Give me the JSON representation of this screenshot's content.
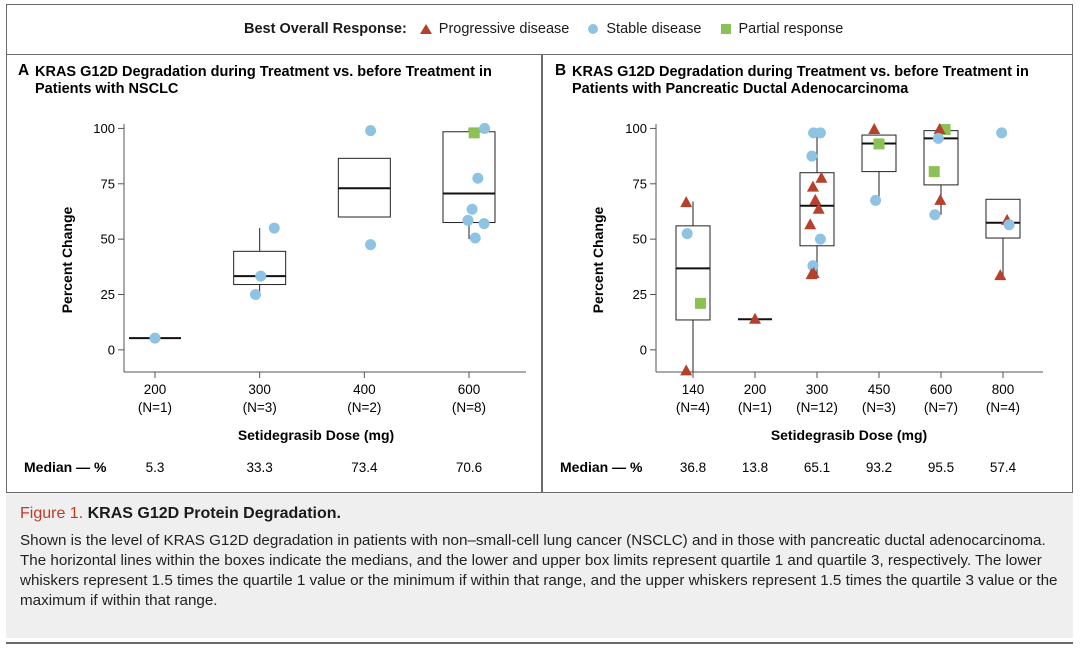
{
  "legend": {
    "title": "Best Overall Response:",
    "items": [
      {
        "label": "Progressive disease",
        "shape": "triangle",
        "color": "#b5402b"
      },
      {
        "label": "Stable disease",
        "shape": "circle",
        "color": "#8fc3e3"
      },
      {
        "label": "Partial response",
        "shape": "square",
        "color": "#8cc155"
      }
    ]
  },
  "colors": {
    "progressive": "#b5402b",
    "stable": "#8fc3e3",
    "partial": "#8cc155",
    "frame": "#6b6b6b",
    "caption_bg": "#efefef",
    "fig_label": "#c0392b"
  },
  "chart_data": [
    {
      "type": "box",
      "panel_letter": "A",
      "title_lines": [
        "KRAS G12D Degradation during Treatment vs. before Treatment in",
        "Patients with NSCLC"
      ],
      "ylabel": "Percent Change",
      "xlabel": "Setidegrasib Dose (mg)",
      "ylim": [
        -10,
        102
      ],
      "yticks": [
        0,
        25,
        50,
        75,
        100
      ],
      "median_label": "Median — %",
      "groups": [
        {
          "dose": "200",
          "n": "(N=1)",
          "median_text": "5.3",
          "box": {
            "q1": 5.3,
            "median": 5.3,
            "q3": 5.3,
            "whisker_low": 5.3,
            "whisker_high": 5.3
          },
          "points": [
            {
              "dx": 0.0,
              "y": 5.3,
              "response": "stable"
            }
          ]
        },
        {
          "dose": "300",
          "n": "(N=3)",
          "median_text": "33.3",
          "box": {
            "q1": 29.5,
            "median": 33.3,
            "q3": 44.5,
            "whisker_low": 24.5,
            "whisker_high": 55
          },
          "points": [
            {
              "dx": -0.08,
              "y": 25,
              "response": "stable"
            },
            {
              "dx": 0.02,
              "y": 33.3,
              "response": "stable"
            },
            {
              "dx": 0.28,
              "y": 55,
              "response": "stable"
            }
          ]
        },
        {
          "dose": "400",
          "n": "(N=2)",
          "median_text": "73.4",
          "box": {
            "q1": 60,
            "median": 73,
            "q3": 86.5,
            "whisker_low": 60,
            "whisker_high": 86.5
          },
          "points": [
            {
              "dx": 0.12,
              "y": 99,
              "response": "stable"
            },
            {
              "dx": 0.12,
              "y": 47.5,
              "response": "stable"
            }
          ]
        },
        {
          "dose": "600",
          "n": "(N=8)",
          "median_text": "70.6",
          "box": {
            "q1": 57.5,
            "median": 70.6,
            "q3": 98.5,
            "whisker_low": 50,
            "whisker_high": 100
          },
          "points": [
            {
              "dx": 0.1,
              "y": 98,
              "response": "partial"
            },
            {
              "dx": 0.3,
              "y": 100,
              "response": "stable"
            },
            {
              "dx": 0.17,
              "y": 77.5,
              "response": "stable"
            },
            {
              "dx": 0.06,
              "y": 63.5,
              "response": "stable"
            },
            {
              "dx": -0.02,
              "y": 58.5,
              "response": "stable"
            },
            {
              "dx": 0.29,
              "y": 57,
              "response": "stable"
            },
            {
              "dx": 0.12,
              "y": 50.5,
              "response": "stable"
            }
          ]
        }
      ]
    },
    {
      "type": "box",
      "panel_letter": "B",
      "title_lines": [
        "KRAS G12D Degradation during Treatment vs. before Treatment in",
        "Patients with Pancreatic Ductal Adenocarcinoma"
      ],
      "ylabel": "Percent Change",
      "xlabel": "Setidegrasib Dose (mg)",
      "ylim": [
        -10,
        102
      ],
      "yticks": [
        0,
        25,
        50,
        75,
        100
      ],
      "median_label": "Median — %",
      "groups": [
        {
          "dose": "140",
          "n": "(N=4)",
          "median_text": "36.8",
          "box": {
            "q1": 13.5,
            "median": 36.8,
            "q3": 56,
            "whisker_low": -10,
            "whisker_high": 67
          },
          "points": [
            {
              "dx": -0.2,
              "y": 66.5,
              "response": "progressive"
            },
            {
              "dx": -0.17,
              "y": 52.5,
              "response": "stable"
            },
            {
              "dx": 0.22,
              "y": 21,
              "response": "partial"
            },
            {
              "dx": -0.2,
              "y": -9.5,
              "response": "progressive"
            }
          ]
        },
        {
          "dose": "200",
          "n": "(N=1)",
          "median_text": "13.8",
          "box": {
            "q1": 13.8,
            "median": 13.8,
            "q3": 13.8,
            "whisker_low": 13.8,
            "whisker_high": 13.8
          },
          "points": [
            {
              "dx": 0.0,
              "y": 13.8,
              "response": "progressive"
            }
          ]
        },
        {
          "dose": "300",
          "n": "(N=12)",
          "median_text": "65.1",
          "box": {
            "q1": 47,
            "median": 65.1,
            "q3": 80,
            "whisker_low": 34,
            "whisker_high": 98
          },
          "points": [
            {
              "dx": -0.1,
              "y": 98,
              "response": "stable"
            },
            {
              "dx": 0.1,
              "y": 98,
              "response": "stable"
            },
            {
              "dx": -0.15,
              "y": 87.5,
              "response": "stable"
            },
            {
              "dx": 0.13,
              "y": 77.5,
              "response": "progressive"
            },
            {
              "dx": -0.12,
              "y": 73.5,
              "response": "progressive"
            },
            {
              "dx": -0.05,
              "y": 67.5,
              "response": "progressive"
            },
            {
              "dx": 0.05,
              "y": 63.5,
              "response": "progressive"
            },
            {
              "dx": -0.2,
              "y": 56.5,
              "response": "progressive"
            },
            {
              "dx": 0.1,
              "y": 50,
              "response": "stable"
            },
            {
              "dx": -0.12,
              "y": 38,
              "response": "stable"
            },
            {
              "dx": -0.16,
              "y": 34,
              "response": "progressive"
            },
            {
              "dx": -0.1,
              "y": 34.5,
              "response": "progressive"
            }
          ]
        },
        {
          "dose": "450",
          "n": "(N=3)",
          "median_text": "93.2",
          "box": {
            "q1": 80.5,
            "median": 93.2,
            "q3": 97,
            "whisker_low": 67.5,
            "whisker_high": 97
          },
          "points": [
            {
              "dx": -0.14,
              "y": 99.5,
              "response": "progressive"
            },
            {
              "dx": 0.0,
              "y": 93,
              "response": "partial"
            },
            {
              "dx": -0.1,
              "y": 67.5,
              "response": "stable"
            }
          ]
        },
        {
          "dose": "600",
          "n": "(N=7)",
          "median_text": "95.5",
          "box": {
            "q1": 74.5,
            "median": 95.5,
            "q3": 99,
            "whisker_low": 61,
            "whisker_high": 100
          },
          "points": [
            {
              "dx": 0.12,
              "y": 99.5,
              "response": "partial"
            },
            {
              "dx": -0.04,
              "y": 99.5,
              "response": "progressive"
            },
            {
              "dx": -0.08,
              "y": 95.5,
              "response": "stable"
            },
            {
              "dx": -0.2,
              "y": 80.5,
              "response": "partial"
            },
            {
              "dx": -0.02,
              "y": 67.5,
              "response": "progressive"
            },
            {
              "dx": -0.18,
              "y": 61,
              "response": "stable"
            }
          ]
        },
        {
          "dose": "800",
          "n": "(N=4)",
          "median_text": "57.4",
          "box": {
            "q1": 50.5,
            "median": 57.4,
            "q3": 68,
            "whisker_low": 33.5,
            "whisker_high": 68
          },
          "points": [
            {
              "dx": -0.04,
              "y": 98,
              "response": "stable"
            },
            {
              "dx": 0.12,
              "y": 58.5,
              "response": "progressive"
            },
            {
              "dx": 0.18,
              "y": 56.5,
              "response": "stable"
            },
            {
              "dx": -0.08,
              "y": 33.5,
              "response": "progressive"
            }
          ]
        }
      ]
    }
  ],
  "caption": {
    "fig_label": "Figure 1.",
    "title": "KRAS G12D Protein Degradation.",
    "body": "Shown is the level of KRAS G12D degradation in patients with non–small-cell lung cancer (NSCLC) and in those with pancreatic ductal adenocarcinoma. The horizontal lines within the boxes indicate the medians, and the lower and upper box limits represent quartile 1 and quartile 3, respectively. The lower whiskers represent 1.5 times the quartile 1 value or the minimum if within that range, and the upper whiskers represent 1.5 times the quartile 3 value or the maximum if within that range."
  }
}
